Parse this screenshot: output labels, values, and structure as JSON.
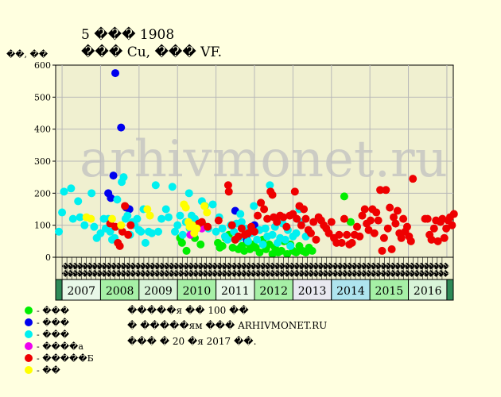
{
  "title": "5 ��� 1908",
  "subtitle": "��� Cu, ��� VF.",
  "ylabel": "��, ��",
  "watermark": "arhivmonet.ru",
  "notes": [
    "�����я �� 100 ��",
    "� �����ям ��� ARHIVMONET.RU",
    "��� � 20 �я 2017 ��."
  ],
  "colors": {
    "background": "#ffffe0",
    "plot_bg": "#f0f0d0",
    "grid": "#b8b8b8",
    "year_green": "#a6f0a6",
    "year_blue": "#aee4ee",
    "year_dark": "#2e8b57",
    "year_alt": "#e8e8f0"
  },
  "chart_data": {
    "type": "scatter",
    "ylim": [
      0,
      600
    ],
    "yticks": [
      0,
      100,
      200,
      300,
      400,
      500,
      600
    ],
    "grid": true,
    "legend_position": "bottom-left",
    "month_labels": [
      "��",
      "��",
      "��",
      "��",
      "��",
      "��",
      "��",
      "��",
      "��",
      "��",
      "��",
      "��",
      "��",
      "��",
      "��",
      "��",
      "��",
      "��",
      "��",
      "��",
      "��",
      "��",
      "��",
      "��",
      "��",
      "��",
      "��",
      "��",
      "��",
      "��",
      "��",
      "��",
      "��",
      "��",
      "��",
      "��",
      "��",
      "��",
      "��",
      "��",
      "��",
      "��",
      "��",
      "��",
      "��",
      "��",
      "��",
      "��",
      "��",
      "��",
      "��",
      "��",
      "��",
      "��",
      "��",
      "��",
      "��",
      "��",
      "��",
      "��",
      "��",
      "��",
      "��",
      "��",
      "��",
      "��",
      "��",
      "��",
      "��",
      "��",
      "��",
      "��",
      "��",
      "��",
      "��",
      "��",
      "��",
      "��",
      "��",
      "��"
    ],
    "years": [
      {
        "label": "",
        "start": 0,
        "end": 1,
        "color": "#2e8b57"
      },
      {
        "label": "2007",
        "start": 1,
        "end": 7,
        "color": "#e8f8e8"
      },
      {
        "label": "2008",
        "start": 7,
        "end": 13,
        "color": "#a6f0a6"
      },
      {
        "label": "2009",
        "start": 13,
        "end": 19,
        "color": "#d8f4d8"
      },
      {
        "label": "2010",
        "start": 19,
        "end": 25,
        "color": "#a6f0a6"
      },
      {
        "label": "2011",
        "start": 25,
        "end": 31,
        "color": "#e8f8e8"
      },
      {
        "label": "2012",
        "start": 31,
        "end": 37,
        "color": "#a6f0a6"
      },
      {
        "label": "2013",
        "start": 37,
        "end": 43,
        "color": "#e8e8f0"
      },
      {
        "label": "2014",
        "start": 43,
        "end": 49,
        "color": "#aee4ee"
      },
      {
        "label": "2015",
        "start": 49,
        "end": 55,
        "color": "#a6f0a6"
      },
      {
        "label": "2016",
        "start": 55,
        "end": 61,
        "color": "#d8f4d8"
      },
      {
        "label": "",
        "start": 61,
        "end": 62,
        "color": "#2e8b57"
      }
    ],
    "series": [
      {
        "name": "- ���",
        "color": "#00ee00",
        "points": [
          [
            19.7,
            45
          ],
          [
            19.4,
            60
          ],
          [
            20.4,
            20
          ],
          [
            21.7,
            60
          ],
          [
            22.6,
            40
          ],
          [
            23.0,
            100
          ],
          [
            25.3,
            45
          ],
          [
            25.6,
            30
          ],
          [
            26.0,
            35
          ],
          [
            26.5,
            60
          ],
          [
            27.0,
            70
          ],
          [
            27.6,
            30
          ],
          [
            28.0,
            55
          ],
          [
            28.5,
            25
          ],
          [
            29.0,
            35
          ],
          [
            29.4,
            20
          ],
          [
            29.8,
            45
          ],
          [
            30.3,
            25
          ],
          [
            30.8,
            40
          ],
          [
            31.2,
            30
          ],
          [
            31.8,
            15
          ],
          [
            32.3,
            55
          ],
          [
            32.8,
            25
          ],
          [
            33.3,
            40
          ],
          [
            33.8,
            10
          ],
          [
            34.2,
            30
          ],
          [
            34.7,
            15
          ],
          [
            35.2,
            20
          ],
          [
            35.6,
            50
          ],
          [
            36.1,
            10
          ],
          [
            36.6,
            40
          ],
          [
            37.0,
            20
          ],
          [
            37.5,
            15
          ],
          [
            38.0,
            35
          ],
          [
            38.5,
            20
          ],
          [
            39.0,
            15
          ],
          [
            39.5,
            30
          ],
          [
            40.0,
            20
          ],
          [
            45.0,
            190
          ],
          [
            46.0,
            110
          ]
        ]
      },
      {
        "name": "- ���",
        "color": "#0000ee",
        "points": [
          [
            9.3,
            575
          ],
          [
            10.2,
            405
          ],
          [
            9.0,
            255
          ],
          [
            8.2,
            200
          ],
          [
            8.6,
            185
          ],
          [
            11.0,
            155
          ],
          [
            11.5,
            150
          ],
          [
            28.0,
            145
          ],
          [
            30.7,
            80
          ],
          [
            29.8,
            55
          ],
          [
            31.0,
            100
          ]
        ]
      },
      {
        "name": "- ���",
        "color": "#00f0f0",
        "points": [
          [
            0.5,
            80
          ],
          [
            1.0,
            140
          ],
          [
            1.3,
            205
          ],
          [
            2.4,
            215
          ],
          [
            2.7,
            120
          ],
          [
            3.5,
            175
          ],
          [
            3.8,
            125
          ],
          [
            4.5,
            100
          ],
          [
            5.6,
            200
          ],
          [
            6.0,
            95
          ],
          [
            6.4,
            60
          ],
          [
            7.0,
            75
          ],
          [
            7.5,
            120
          ],
          [
            7.8,
            90
          ],
          [
            8.2,
            120
          ],
          [
            8.5,
            80
          ],
          [
            8.8,
            55
          ],
          [
            9.2,
            60
          ],
          [
            9.6,
            180
          ],
          [
            10.0,
            95
          ],
          [
            10.3,
            235
          ],
          [
            10.6,
            250
          ],
          [
            10.9,
            120
          ],
          [
            11.2,
            130
          ],
          [
            11.6,
            70
          ],
          [
            12.0,
            110
          ],
          [
            12.3,
            100
          ],
          [
            12.7,
            120
          ],
          [
            13.0,
            85
          ],
          [
            13.3,
            80
          ],
          [
            13.7,
            150
          ],
          [
            14.0,
            45
          ],
          [
            14.5,
            80
          ],
          [
            15.0,
            75
          ],
          [
            15.6,
            225
          ],
          [
            16.0,
            80
          ],
          [
            16.5,
            120
          ],
          [
            17.2,
            150
          ],
          [
            17.6,
            125
          ],
          [
            18.2,
            220
          ],
          [
            18.6,
            80
          ],
          [
            19.0,
            100
          ],
          [
            19.4,
            130
          ],
          [
            19.8,
            70
          ],
          [
            20.3,
            110
          ],
          [
            20.8,
            200
          ],
          [
            21.2,
            130
          ],
          [
            21.7,
            120
          ],
          [
            22.3,
            95
          ],
          [
            22.8,
            175
          ],
          [
            23.3,
            160
          ],
          [
            23.8,
            90
          ],
          [
            24.5,
            165
          ],
          [
            25.0,
            80
          ],
          [
            25.5,
            125
          ],
          [
            26.0,
            90
          ],
          [
            26.4,
            65
          ],
          [
            26.8,
            55
          ],
          [
            27.3,
            100
          ],
          [
            27.8,
            80
          ],
          [
            28.2,
            105
          ],
          [
            28.6,
            60
          ],
          [
            29.0,
            110
          ],
          [
            29.5,
            90
          ],
          [
            30.0,
            50
          ],
          [
            30.5,
            75
          ],
          [
            30.9,
            160
          ],
          [
            31.4,
            55
          ],
          [
            31.8,
            85
          ],
          [
            32.3,
            40
          ],
          [
            32.7,
            90
          ],
          [
            33.0,
            65
          ],
          [
            33.4,
            225
          ],
          [
            33.8,
            70
          ],
          [
            34.2,
            95
          ],
          [
            34.6,
            45
          ],
          [
            35.0,
            60
          ],
          [
            35.4,
            105
          ],
          [
            35.8,
            55
          ],
          [
            36.2,
            85
          ],
          [
            36.6,
            35
          ],
          [
            37.0,
            65
          ],
          [
            37.5,
            75
          ],
          [
            38.0,
            150
          ],
          [
            38.3,
            110
          ],
          [
            39.0,
            65
          ],
          [
            20.9,
            90
          ],
          [
            28.8,
            135
          ]
        ]
      },
      {
        "name": "- ����а",
        "color": "#ee00ee",
        "points": [
          [
            21.0,
            70
          ],
          [
            22.8,
            90
          ]
        ]
      },
      {
        "name": "- �����Б",
        "color": "#ee0000",
        "points": [
          [
            8.5,
            105
          ],
          [
            9.3,
            95
          ],
          [
            9.7,
            45
          ],
          [
            10.0,
            35
          ],
          [
            10.4,
            80
          ],
          [
            10.8,
            160
          ],
          [
            11.3,
            70
          ],
          [
            11.7,
            100
          ],
          [
            22.3,
            105
          ],
          [
            22.8,
            110
          ],
          [
            23.7,
            95
          ],
          [
            25.4,
            115
          ],
          [
            26.9,
            225
          ],
          [
            27.0,
            205
          ],
          [
            27.5,
            100
          ],
          [
            28.0,
            55
          ],
          [
            28.5,
            65
          ],
          [
            29.0,
            90
          ],
          [
            29.5,
            70
          ],
          [
            30.0,
            75
          ],
          [
            30.5,
            95
          ],
          [
            31.0,
            80
          ],
          [
            31.5,
            130
          ],
          [
            32.0,
            170
          ],
          [
            32.5,
            150
          ],
          [
            33.0,
            120
          ],
          [
            33.5,
            205
          ],
          [
            33.8,
            195
          ],
          [
            34.0,
            125
          ],
          [
            34.5,
            110
          ],
          [
            35.0,
            130
          ],
          [
            35.5,
            125
          ],
          [
            36.0,
            95
          ],
          [
            36.5,
            130
          ],
          [
            37.0,
            135
          ],
          [
            37.3,
            205
          ],
          [
            37.6,
            120
          ],
          [
            38.0,
            160
          ],
          [
            38.3,
            100
          ],
          [
            38.7,
            150
          ],
          [
            39.0,
            120
          ],
          [
            39.4,
            85
          ],
          [
            39.8,
            75
          ],
          [
            40.2,
            110
          ],
          [
            40.6,
            55
          ],
          [
            41.0,
            125
          ],
          [
            41.4,
            115
          ],
          [
            41.8,
            100
          ],
          [
            42.2,
            90
          ],
          [
            42.6,
            75
          ],
          [
            43.0,
            110
          ],
          [
            43.4,
            60
          ],
          [
            43.8,
            45
          ],
          [
            44.2,
            70
          ],
          [
            44.6,
            45
          ],
          [
            45.0,
            120
          ],
          [
            45.4,
            70
          ],
          [
            45.8,
            40
          ],
          [
            46.2,
            45
          ],
          [
            46.6,
            70
          ],
          [
            47.0,
            95
          ],
          [
            47.4,
            65
          ],
          [
            47.8,
            130
          ],
          [
            48.2,
            150
          ],
          [
            48.5,
            105
          ],
          [
            48.8,
            85
          ],
          [
            49.1,
            115
          ],
          [
            49.4,
            150
          ],
          [
            49.7,
            75
          ],
          [
            50.0,
            140
          ],
          [
            50.3,
            115
          ],
          [
            50.6,
            210
          ],
          [
            50.9,
            20
          ],
          [
            51.2,
            60
          ],
          [
            51.5,
            210
          ],
          [
            51.8,
            90
          ],
          [
            52.1,
            155
          ],
          [
            52.4,
            25
          ],
          [
            52.7,
            125
          ],
          [
            53.0,
            105
          ],
          [
            53.3,
            145
          ],
          [
            53.6,
            75
          ],
          [
            53.9,
            60
          ],
          [
            54.2,
            120
          ],
          [
            54.5,
            80
          ],
          [
            54.8,
            95
          ],
          [
            55.1,
            65
          ],
          [
            55.4,
            50
          ],
          [
            55.7,
            245
          ],
          [
            57.6,
            120
          ],
          [
            58.0,
            120
          ],
          [
            58.3,
            70
          ],
          [
            58.6,
            55
          ],
          [
            59.0,
            90
          ],
          [
            59.3,
            115
          ],
          [
            59.6,
            50
          ],
          [
            60.0,
            110
          ],
          [
            60.3,
            120
          ],
          [
            60.6,
            60
          ],
          [
            60.9,
            90
          ],
          [
            61.2,
            115
          ],
          [
            61.5,
            125
          ],
          [
            61.8,
            100
          ],
          [
            62.1,
            135
          ]
        ]
      },
      {
        "name": "- ��",
        "color": "#ffff00",
        "points": [
          [
            4.8,
            125
          ],
          [
            5.5,
            120
          ],
          [
            8.8,
            120
          ],
          [
            10.2,
            100
          ],
          [
            14.3,
            150
          ],
          [
            14.7,
            130
          ],
          [
            20.0,
            165
          ],
          [
            20.3,
            155
          ],
          [
            20.7,
            110
          ],
          [
            20.9,
            95
          ],
          [
            21.3,
            100
          ],
          [
            21.6,
            75
          ],
          [
            22.0,
            90
          ],
          [
            23.2,
            160
          ],
          [
            23.6,
            140
          ]
        ]
      }
    ]
  }
}
